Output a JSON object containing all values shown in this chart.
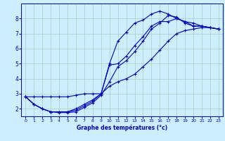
{
  "xlabel": "Graphe des températures (°c)",
  "bg_color": "#cceeff",
  "line_color": "#0000cc",
  "grid_color": "#aaccbb",
  "xlim": [
    -0.5,
    23.5
  ],
  "ylim": [
    1.5,
    9.0
  ],
  "xticks": [
    0,
    1,
    2,
    3,
    4,
    5,
    6,
    7,
    8,
    9,
    10,
    11,
    12,
    13,
    14,
    15,
    16,
    17,
    18,
    19,
    20,
    21,
    22,
    23
  ],
  "yticks": [
    2,
    3,
    4,
    5,
    6,
    7,
    8
  ],
  "series": [
    {
      "x": [
        0,
        1,
        2,
        3,
        4,
        5,
        6,
        7,
        8,
        9,
        10,
        11,
        12,
        13,
        14,
        15,
        16,
        17,
        18,
        19,
        20,
        21,
        22,
        23
      ],
      "y": [
        2.8,
        2.3,
        2.0,
        1.8,
        1.8,
        1.8,
        1.9,
        2.2,
        2.5,
        3.0,
        5.0,
        6.5,
        7.1,
        7.7,
        7.9,
        8.3,
        8.5,
        8.3,
        8.0,
        7.8,
        7.7,
        7.5,
        7.4,
        7.3
      ]
    },
    {
      "x": [
        0,
        1,
        2,
        3,
        4,
        5,
        6,
        7,
        8,
        9,
        10,
        11,
        12,
        13,
        14,
        15,
        16,
        17,
        18,
        19,
        20,
        21,
        22,
        23
      ],
      "y": [
        2.8,
        2.3,
        2.0,
        1.8,
        1.8,
        1.8,
        2.0,
        2.3,
        2.6,
        3.0,
        4.9,
        5.0,
        5.5,
        6.2,
        6.8,
        7.5,
        7.8,
        7.8,
        8.0,
        7.8,
        7.5,
        7.5,
        7.4,
        7.3
      ]
    },
    {
      "x": [
        0,
        1,
        2,
        3,
        4,
        5,
        6,
        7,
        8,
        9,
        10,
        11,
        12,
        13,
        14,
        15,
        16,
        17,
        18,
        19,
        20,
        21,
        22,
        23
      ],
      "y": [
        2.8,
        2.8,
        2.8,
        2.8,
        2.8,
        2.8,
        2.9,
        3.0,
        3.0,
        3.0,
        3.5,
        3.8,
        4.0,
        4.3,
        4.8,
        5.3,
        5.9,
        6.5,
        7.0,
        7.2,
        7.3,
        7.4,
        7.4,
        7.3
      ]
    },
    {
      "x": [
        0,
        1,
        2,
        3,
        4,
        5,
        6,
        7,
        8,
        9,
        10,
        11,
        12,
        13,
        14,
        15,
        16,
        17,
        18,
        19,
        20,
        21,
        22,
        23
      ],
      "y": [
        2.8,
        2.3,
        2.0,
        1.8,
        1.75,
        1.75,
        1.8,
        2.1,
        2.4,
        2.9,
        3.8,
        4.8,
        5.2,
        5.8,
        6.5,
        7.3,
        7.7,
        8.2,
        8.1,
        7.7,
        7.5,
        7.5,
        7.4,
        7.3
      ]
    }
  ]
}
